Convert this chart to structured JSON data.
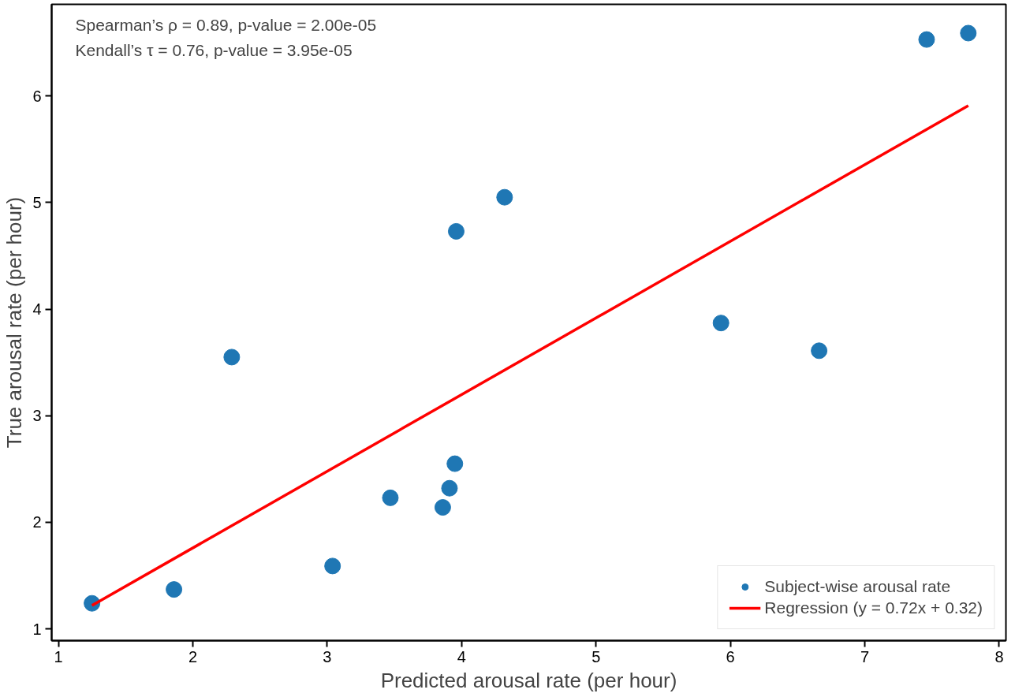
{
  "chart_data": {
    "type": "scatter",
    "xlabel": "Predicted arousal rate (per hour)",
    "ylabel": "True arousal rate (per hour)",
    "annotations": [
      "Spearman’s ρ = 0.89, p-value = 2.00e-05",
      "Kendall’s τ = 0.76, p-value = 3.95e-05"
    ],
    "xlim": [
      0.95,
      8.05
    ],
    "ylim": [
      0.89,
      6.86
    ],
    "xticks": [
      1,
      2,
      3,
      4,
      5,
      6,
      7,
      8
    ],
    "yticks": [
      1,
      2,
      3,
      4,
      5,
      6
    ],
    "grid": false,
    "legend": "bottom right",
    "series": [
      {
        "name": "Subject-wise arousal rate",
        "marker": "circle",
        "color": "#1f77b4",
        "x": [
          1.25,
          1.86,
          2.29,
          3.04,
          3.47,
          3.86,
          3.91,
          3.95,
          3.96,
          4.32,
          5.93,
          6.66,
          7.46,
          7.77
        ],
        "values": [
          1.24,
          1.37,
          3.55,
          1.59,
          2.23,
          2.14,
          2.32,
          2.55,
          4.73,
          5.05,
          3.87,
          3.61,
          6.53,
          6.59
        ]
      },
      {
        "name": "Regression (y = 0.72x + 0.32)",
        "type": "line",
        "color": "#ff0000",
        "line_style": "solid",
        "x": [
          1.25,
          7.77
        ],
        "values": [
          1.22,
          5.91
        ]
      }
    ]
  }
}
